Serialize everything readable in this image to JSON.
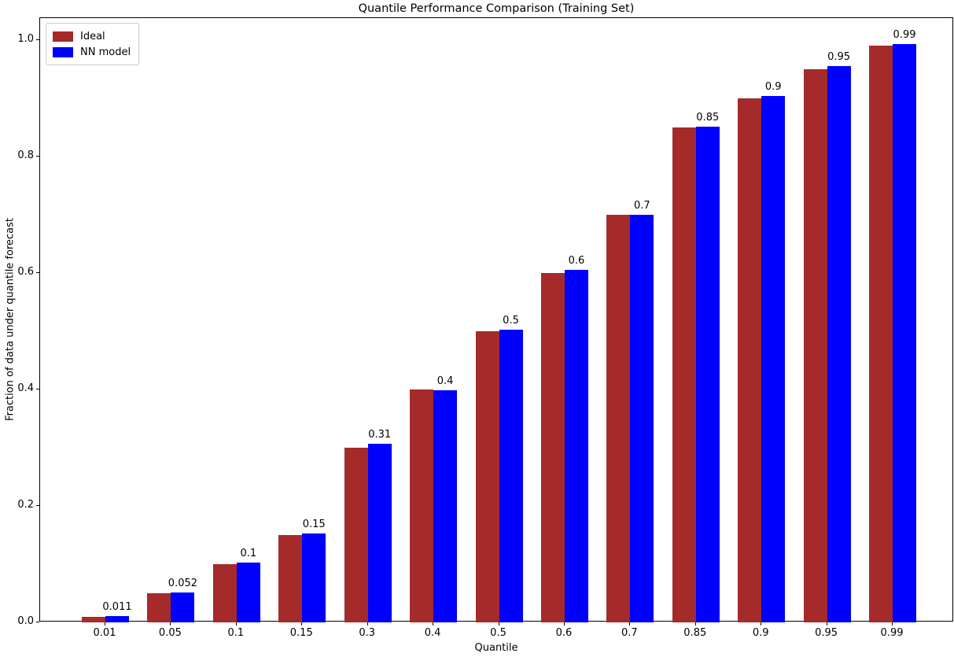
{
  "chart_data": {
    "type": "bar",
    "title": "Quantile Performance Comparison (Training Set)",
    "xlabel": "Quantile",
    "ylabel": "Fraction of data under quantile forecast",
    "categories": [
      "0.01",
      "0.05",
      "0.1",
      "0.15",
      "0.3",
      "0.4",
      "0.5",
      "0.6",
      "0.7",
      "0.85",
      "0.9",
      "0.95",
      "0.99"
    ],
    "series": [
      {
        "name": "Ideal",
        "color": "#A52A2A",
        "values": [
          0.01,
          0.05,
          0.1,
          0.15,
          0.3,
          0.4,
          0.5,
          0.6,
          0.7,
          0.85,
          0.9,
          0.95,
          0.99
        ]
      },
      {
        "name": "NN model",
        "color": "#0000FF",
        "values": [
          0.011,
          0.052,
          0.103,
          0.152,
          0.307,
          0.398,
          0.503,
          0.605,
          0.7,
          0.851,
          0.904,
          0.955,
          0.993
        ]
      }
    ],
    "bar_labels": [
      "0.011",
      "0.052",
      "0.1",
      "0.15",
      "0.31",
      "0.4",
      "0.5",
      "0.6",
      "0.7",
      "0.85",
      "0.9",
      "0.95",
      "0.99"
    ],
    "yticks": [
      "0.0",
      "0.2",
      "0.4",
      "0.6",
      "0.8",
      "1.0"
    ],
    "ylim": [
      0,
      1.0375
    ],
    "legend_position": "upper left",
    "grid": false
  }
}
